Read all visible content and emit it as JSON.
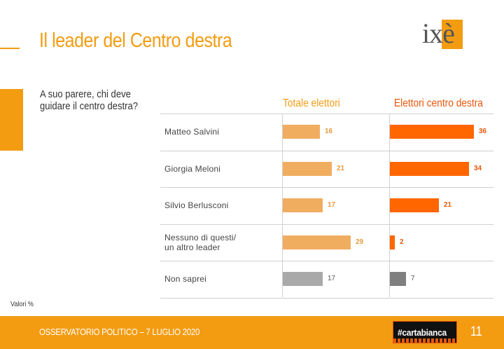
{
  "header": {
    "title": "Il leader del Centro destra"
  },
  "logo": {
    "text": "ixè"
  },
  "question": "A suo parere, chi deve guidare il centro destra?",
  "chart_data": {
    "type": "bar",
    "orientation": "horizontal",
    "categories": [
      "Matteo Salvini",
      "Giorgia Meloni",
      "Silvio Berlusconi",
      "Nessuno di questi/ un altro leader",
      "Non saprei"
    ],
    "category_lines": [
      [
        "Matteo Salvini"
      ],
      [
        "Giorgia Meloni"
      ],
      [
        "Silvio Berlusconi"
      ],
      [
        "Nessuno di questi/",
        "un altro leader"
      ],
      [
        "Non saprei"
      ]
    ],
    "series": [
      {
        "name": "Totale elettori",
        "values": [
          16,
          21,
          17,
          29,
          17
        ],
        "color": "#f0ad60",
        "last_color": "#a9a9a9",
        "label_color": "#e89a3c"
      },
      {
        "name": "Elettori centro destra",
        "values": [
          36,
          34,
          21,
          2,
          7
        ],
        "color": "#ff6600",
        "last_color": "#7f7f7f",
        "label_color": "#e8570a"
      }
    ],
    "xlim": [
      0,
      40
    ],
    "footnote": "Valori %"
  },
  "footer": {
    "text": "OSSERVATORIO POLITICO – 7 LUGLIO 2020",
    "brand": "#cartabianca",
    "page": "11"
  }
}
